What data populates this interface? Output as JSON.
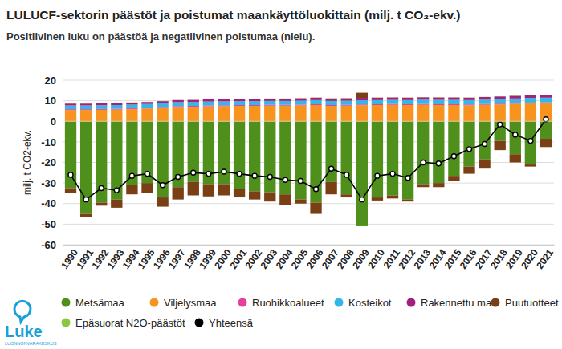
{
  "chart_data": {
    "type": "bar",
    "stacked": true,
    "title": "LULUCF-sektorin päästöt ja poistumat maankäyttöluokittain (milj. t CO₂-ekv.)",
    "subtitle": "Positiivinen luku on päästöä ja negatiivinen poistumaa (nielu).",
    "y_label": "milj. t CO2-ekv.",
    "annotations": [
      "Luke",
      "LUONNONVARAKESKUS"
    ],
    "categories": [
      "1990",
      "1991",
      "1992",
      "1993",
      "1994",
      "1995",
      "1996",
      "1997",
      "1998",
      "1999",
      "2000",
      "2001",
      "2002",
      "2003",
      "2004",
      "2005",
      "2006",
      "2007",
      "2008",
      "2009",
      "2010",
      "2011",
      "2012",
      "2013",
      "2014",
      "2015",
      "2016",
      "2017",
      "2018",
      "2019",
      "2020",
      "2021"
    ],
    "ylim": [
      -60,
      20
    ],
    "yticks": [
      -60,
      -50,
      -40,
      -30,
      -20,
      -10,
      0,
      10,
      20
    ],
    "grid": true,
    "legend": "bottom",
    "series": [
      {
        "name": "Metsämaa",
        "color": "#4f8f1c",
        "values": [
          -32.5,
          -45,
          -39.5,
          -38,
          -31,
          -30,
          -37,
          -32,
          -29.5,
          -30.5,
          -30.5,
          -33,
          -34,
          -34.5,
          -35.5,
          -38,
          -39.5,
          -29.5,
          -35.5,
          -51,
          -37,
          -36,
          -38,
          -30.5,
          -30,
          -26.5,
          -22,
          -18.5,
          -9.5,
          -16,
          -21,
          -8.5
        ]
      },
      {
        "name": "Viljelysmaa",
        "color": "#f7931e",
        "values": [
          5.5,
          5.5,
          5.6,
          5.7,
          5.9,
          6.2,
          6.6,
          7.0,
          7.1,
          7.3,
          7.4,
          7.5,
          7.5,
          7.6,
          7.6,
          7.7,
          7.9,
          7.5,
          7.6,
          7.8,
          7.9,
          8.0,
          7.9,
          8.0,
          7.9,
          7.9,
          7.8,
          8.0,
          8.2,
          8.5,
          8.7,
          8.8
        ]
      },
      {
        "name": "Ruohikkoalueet",
        "color": "#e3419b",
        "values": [
          0.4,
          0.4,
          0.4,
          0.4,
          0.4,
          0.4,
          0.4,
          0.4,
          0.4,
          0.4,
          0.4,
          0.4,
          0.4,
          0.4,
          0.4,
          0.4,
          0.4,
          0.4,
          0.4,
          0.4,
          0.4,
          0.4,
          0.4,
          0.4,
          0.4,
          0.4,
          0.4,
          0.4,
          0.4,
          0.4,
          0.4,
          0.4
        ]
      },
      {
        "name": "Kosteikot",
        "color": "#35b6e6",
        "values": [
          1.8,
          1.8,
          1.8,
          1.8,
          1.8,
          1.8,
          1.8,
          1.9,
          1.9,
          1.9,
          1.9,
          1.9,
          1.9,
          1.9,
          1.9,
          1.9,
          2.0,
          2.0,
          2.0,
          2.0,
          2.0,
          2.0,
          2.0,
          2.1,
          2.1,
          2.1,
          2.1,
          2.1,
          2.2,
          2.2,
          2.3,
          2.3
        ]
      },
      {
        "name": "Rakennettu maa",
        "color": "#a3207f",
        "values": [
          0.9,
          0.9,
          0.9,
          0.9,
          1.0,
          1.0,
          1.0,
          1.0,
          1.0,
          1.1,
          1.1,
          1.1,
          1.1,
          1.1,
          1.1,
          1.2,
          1.2,
          1.2,
          1.2,
          1.2,
          1.2,
          1.2,
          1.2,
          1.2,
          1.2,
          1.2,
          1.2,
          1.3,
          1.3,
          1.3,
          1.3,
          1.3
        ]
      },
      {
        "name": "Puutuotteet",
        "color": "#7b3f15",
        "values": [
          -2.5,
          -1.5,
          -1.5,
          -4,
          -4.5,
          -5,
          -4.5,
          -6,
          -6.5,
          -6,
          -5.5,
          -4,
          -4,
          -4.5,
          -5,
          -2,
          -5.5,
          -6,
          -1.5,
          2.5,
          -1.5,
          -1.5,
          -1,
          -1.5,
          -2,
          -2.5,
          -3.5,
          -4.5,
          -4.5,
          -4,
          -1,
          -4
        ]
      },
      {
        "name": "Epäsuorat N2O-päästöt",
        "color": "#8dc63f",
        "values": [
          0.1,
          0.1,
          0.1,
          0.1,
          0.1,
          0.1,
          0.1,
          0.1,
          0.1,
          0.1,
          0.1,
          0.1,
          0.1,
          0.1,
          0.1,
          0.1,
          0.1,
          0.1,
          0.1,
          0.1,
          0.1,
          0.1,
          0.1,
          0.1,
          0.1,
          0.1,
          0.1,
          0.1,
          0.1,
          0.1,
          0.1,
          0.1
        ]
      },
      {
        "name": "Yhteensä",
        "color": "#000000",
        "type": "line",
        "marker": "circle",
        "line_style": "solid",
        "values": [
          -26,
          -38,
          -32.5,
          -33.5,
          -26.5,
          -25.5,
          -31,
          -27,
          -25,
          -25.5,
          -24.5,
          -25.5,
          -26.5,
          -27,
          -28.5,
          -29,
          -33,
          -23,
          -26,
          -38,
          -26.5,
          -25.5,
          -27.5,
          -20,
          -20.5,
          -17,
          -13.5,
          -11,
          -1.5,
          -6.5,
          -9.5,
          1
        ]
      }
    ]
  }
}
